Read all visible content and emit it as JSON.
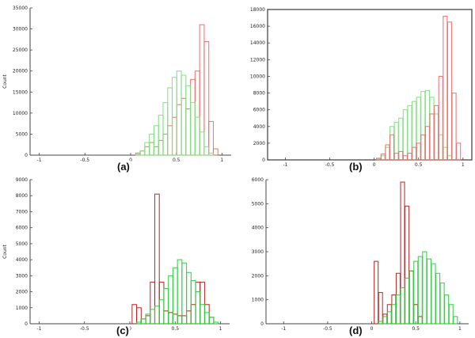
{
  "chart_data": [
    {
      "type": "bar",
      "panel_label": "(a)",
      "ylabel": "Count",
      "xlim": [
        -1.1,
        1.1
      ],
      "ylim": [
        0,
        35000
      ],
      "xticks": [
        "-1",
        "-0.5",
        "0",
        "0.5",
        "1"
      ],
      "yticks": [
        "0",
        "5000",
        "10000",
        "15000",
        "20000",
        "25000",
        "30000",
        "35000"
      ],
      "frame": "axes",
      "bin_width": 0.05,
      "series": [
        {
          "color": "#e86f6f",
          "points": [
            [
              0.08,
              500
            ],
            [
              0.13,
              1000
            ],
            [
              0.18,
              2000
            ],
            [
              0.23,
              3000
            ],
            [
              0.28,
              2000
            ],
            [
              0.33,
              3500
            ],
            [
              0.38,
              5000
            ],
            [
              0.43,
              7000
            ],
            [
              0.48,
              9000
            ],
            [
              0.53,
              12000
            ],
            [
              0.58,
              13500
            ],
            [
              0.63,
              11000
            ],
            [
              0.68,
              18000
            ],
            [
              0.73,
              20000
            ],
            [
              0.78,
              31000
            ],
            [
              0.83,
              27000
            ],
            [
              0.88,
              8000
            ],
            [
              0.93,
              1500
            ]
          ]
        },
        {
          "color": "#7fe07f",
          "points": [
            [
              0.08,
              200
            ],
            [
              0.13,
              1000
            ],
            [
              0.18,
              3000
            ],
            [
              0.23,
              5000
            ],
            [
              0.28,
              7000
            ],
            [
              0.33,
              9500
            ],
            [
              0.38,
              12500
            ],
            [
              0.43,
              16000
            ],
            [
              0.48,
              18500
            ],
            [
              0.53,
              20000
            ],
            [
              0.58,
              19000
            ],
            [
              0.63,
              16500
            ],
            [
              0.68,
              12500
            ],
            [
              0.73,
              9000
            ],
            [
              0.78,
              5500
            ],
            [
              0.83,
              2000
            ],
            [
              0.88,
              500
            ]
          ]
        }
      ]
    },
    {
      "type": "bar",
      "panel_label": "(b)",
      "ylabel": "",
      "xlim": [
        -1.2,
        1.1
      ],
      "ylim": [
        0,
        18000
      ],
      "xticks": [
        "-1",
        "-0.5",
        "0",
        "0.5",
        "1"
      ],
      "yticks": [
        "0",
        "2000",
        "4000",
        "6000",
        "8000",
        "10000",
        "12000",
        "14000",
        "16000",
        "18000"
      ],
      "frame": "box",
      "bin_width": 0.045,
      "series": [
        {
          "color": "#7fe07f",
          "points": [
            [
              0.05,
              100
            ],
            [
              0.1,
              500
            ],
            [
              0.15,
              1500
            ],
            [
              0.2,
              4000
            ],
            [
              0.25,
              4500
            ],
            [
              0.3,
              5000
            ],
            [
              0.35,
              6000
            ],
            [
              0.4,
              6500
            ],
            [
              0.45,
              7000
            ],
            [
              0.5,
              7500
            ],
            [
              0.55,
              8200
            ],
            [
              0.6,
              8300
            ],
            [
              0.65,
              7500
            ],
            [
              0.7,
              5500
            ],
            [
              0.75,
              3000
            ],
            [
              0.8,
              1500
            ],
            [
              0.85,
              500
            ]
          ]
        },
        {
          "color": "#e86f6f",
          "points": [
            [
              0.05,
              200
            ],
            [
              0.1,
              700
            ],
            [
              0.15,
              1800
            ],
            [
              0.2,
              3000
            ],
            [
              0.25,
              800
            ],
            [
              0.3,
              1000
            ],
            [
              0.35,
              500
            ],
            [
              0.4,
              800
            ],
            [
              0.45,
              1500
            ],
            [
              0.5,
              2000
            ],
            [
              0.55,
              3000
            ],
            [
              0.6,
              4000
            ],
            [
              0.65,
              5500
            ],
            [
              0.7,
              6500
            ],
            [
              0.75,
              10000
            ],
            [
              0.8,
              17200
            ],
            [
              0.85,
              16500
            ],
            [
              0.9,
              8000
            ],
            [
              0.95,
              2000
            ]
          ]
        }
      ]
    },
    {
      "type": "bar",
      "panel_label": "(c)",
      "ylabel": "Count",
      "xlim": [
        -1.1,
        1.1
      ],
      "ylim": [
        0,
        9000
      ],
      "xticks": [
        "-1",
        "-0.5",
        "0",
        "0.5",
        "1"
      ],
      "yticks": [
        "0",
        "1000",
        "2000",
        "3000",
        "4000",
        "5000",
        "6000",
        "7000",
        "8000",
        "9000"
      ],
      "frame": "axes",
      "bin_width": 0.05,
      "series": [
        {
          "color": "#b22222",
          "points": [
            [
              0.05,
              1200
            ],
            [
              0.1,
              1000
            ],
            [
              0.15,
              300
            ],
            [
              0.2,
              500
            ],
            [
              0.25,
              2600
            ],
            [
              0.3,
              8100
            ],
            [
              0.35,
              2600
            ],
            [
              0.4,
              800
            ],
            [
              0.45,
              700
            ],
            [
              0.5,
              600
            ],
            [
              0.55,
              500
            ],
            [
              0.6,
              500
            ],
            [
              0.65,
              800
            ],
            [
              0.7,
              1200
            ],
            [
              0.75,
              2600
            ],
            [
              0.8,
              2600
            ],
            [
              0.85,
              1200
            ],
            [
              0.9,
              400
            ]
          ]
        },
        {
          "color": "#2ecc40",
          "points": [
            [
              0.1,
              100
            ],
            [
              0.15,
              300
            ],
            [
              0.2,
              600
            ],
            [
              0.25,
              900
            ],
            [
              0.3,
              1100
            ],
            [
              0.35,
              1500
            ],
            [
              0.4,
              2200
            ],
            [
              0.45,
              3000
            ],
            [
              0.5,
              3500
            ],
            [
              0.55,
              4000
            ],
            [
              0.6,
              3800
            ],
            [
              0.65,
              3200
            ],
            [
              0.7,
              2700
            ],
            [
              0.75,
              2000
            ],
            [
              0.8,
              1200
            ],
            [
              0.85,
              700
            ],
            [
              0.9,
              400
            ],
            [
              0.95,
              100
            ]
          ]
        }
      ]
    },
    {
      "type": "bar",
      "panel_label": "(d)",
      "ylabel": "",
      "xlim": [
        -1.2,
        1.1
      ],
      "ylim": [
        0,
        6000
      ],
      "xticks": [
        "-1",
        "-0.5",
        "0",
        "0.5",
        "1"
      ],
      "yticks": [
        "0",
        "1000",
        "2000",
        "3000",
        "4000",
        "5000",
        "6000"
      ],
      "frame": "axes",
      "bin_width": 0.045,
      "series": [
        {
          "color": "#b22222",
          "points": [
            [
              0.05,
              2600
            ],
            [
              0.1,
              1300
            ],
            [
              0.15,
              400
            ],
            [
              0.2,
              800
            ],
            [
              0.25,
              1200
            ],
            [
              0.3,
              2100
            ],
            [
              0.35,
              5900
            ],
            [
              0.4,
              4900
            ],
            [
              0.45,
              2200
            ],
            [
              0.5,
              800
            ],
            [
              0.55,
              300
            ]
          ]
        },
        {
          "color": "#2ecc40",
          "points": [
            [
              0.1,
              100
            ],
            [
              0.15,
              300
            ],
            [
              0.2,
              500
            ],
            [
              0.25,
              800
            ],
            [
              0.3,
              1200
            ],
            [
              0.35,
              1500
            ],
            [
              0.4,
              1900
            ],
            [
              0.45,
              2200
            ],
            [
              0.5,
              2600
            ],
            [
              0.55,
              2800
            ],
            [
              0.6,
              3000
            ],
            [
              0.65,
              2700
            ],
            [
              0.7,
              2500
            ],
            [
              0.75,
              2100
            ],
            [
              0.8,
              1700
            ],
            [
              0.85,
              1200
            ],
            [
              0.9,
              800
            ],
            [
              0.95,
              300
            ]
          ]
        }
      ]
    }
  ]
}
